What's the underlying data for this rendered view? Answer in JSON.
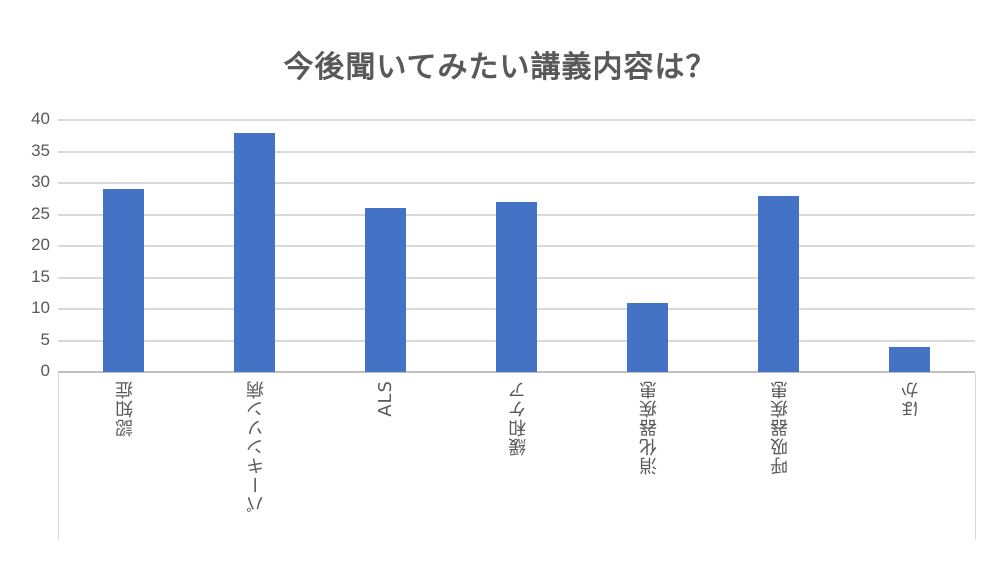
{
  "chart_data": {
    "type": "bar",
    "title": "今後聞いてみたい講義内容は？",
    "categories": [
      "認知症",
      "パーキンソン病",
      "ALS",
      "緩和ケア",
      "消化器疾患",
      "呼吸器疾患",
      "ほか"
    ],
    "values": [
      29,
      38,
      26,
      27,
      11,
      28,
      4
    ],
    "xlabel": "",
    "ylabel": "",
    "ylim": [
      0,
      40
    ],
    "yticks": [
      "0",
      "5",
      "10",
      "15",
      "20",
      "25",
      "30",
      "35",
      "40"
    ],
    "grid": true,
    "legend": "none",
    "bar_color": "#4472c4"
  }
}
